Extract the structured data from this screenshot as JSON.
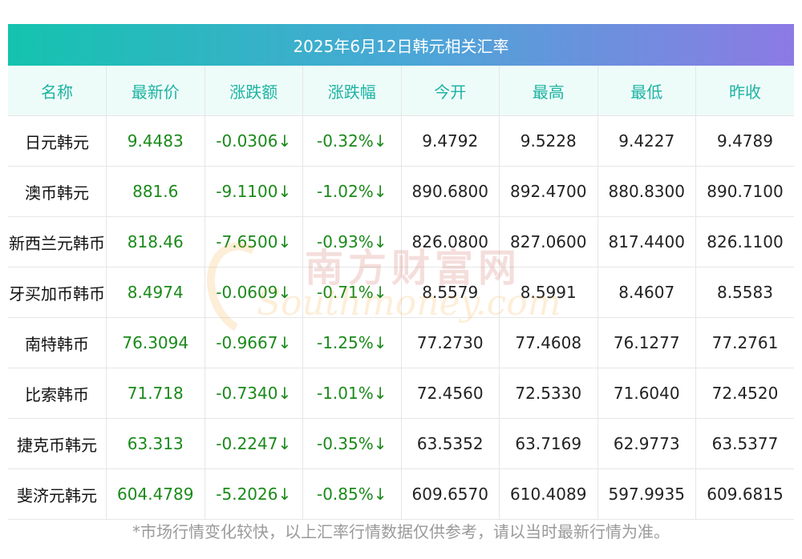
{
  "title": "2025年6月12日韩元相关汇率",
  "columns": [
    "名称",
    "最新价",
    "涨跌额",
    "涨跌幅",
    "今开",
    "最高",
    "最低",
    "昨收"
  ],
  "rows": [
    [
      "日元韩元",
      "9.4483",
      "-0.0306↓",
      "-0.32%↓",
      "9.4792",
      "9.5228",
      "9.4227",
      "9.4789"
    ],
    [
      "澳币韩元",
      "881.6",
      "-9.1100↓",
      "-1.02%↓",
      "890.6800",
      "892.4700",
      "880.8300",
      "890.7100"
    ],
    [
      "新西兰元韩币",
      "818.46",
      "-7.6500↓",
      "-0.93%↓",
      "826.0800",
      "827.0600",
      "817.4400",
      "826.1100"
    ],
    [
      "牙买加币韩币",
      "8.4974",
      "-0.0609↓",
      "-0.71%↓",
      "8.5579",
      "8.5991",
      "8.4607",
      "8.5583"
    ],
    [
      "南特韩币",
      "76.3094",
      "-0.9667↓",
      "-1.25%↓",
      "77.2730",
      "77.4608",
      "76.1277",
      "77.2761"
    ],
    [
      "比索韩币",
      "71.718",
      "-0.7340↓",
      "-1.01%↓",
      "72.4560",
      "72.5330",
      "71.6040",
      "72.4520"
    ],
    [
      "捷克币韩元",
      "63.313",
      "-0.2247↓",
      "-0.35%↓",
      "63.5352",
      "63.7169",
      "62.9773",
      "63.5377"
    ],
    [
      "斐济元韩元",
      "604.4789",
      "-5.2026↓",
      "-0.85%↓",
      "609.6570",
      "610.4089",
      "597.9935",
      "609.6815"
    ]
  ],
  "footnote": "*市场行情变化较快，以上汇率行情数据仅供参考，请以当时最新行情为准。",
  "watermark": {
    "cn": "南方财富网",
    "en": "Southmoney.com"
  },
  "colors": {
    "header_text": "#1eb3a3",
    "change_green": "#1a8a1a",
    "title_gradient": [
      "#14c3ae",
      "#8c7ae4"
    ]
  }
}
